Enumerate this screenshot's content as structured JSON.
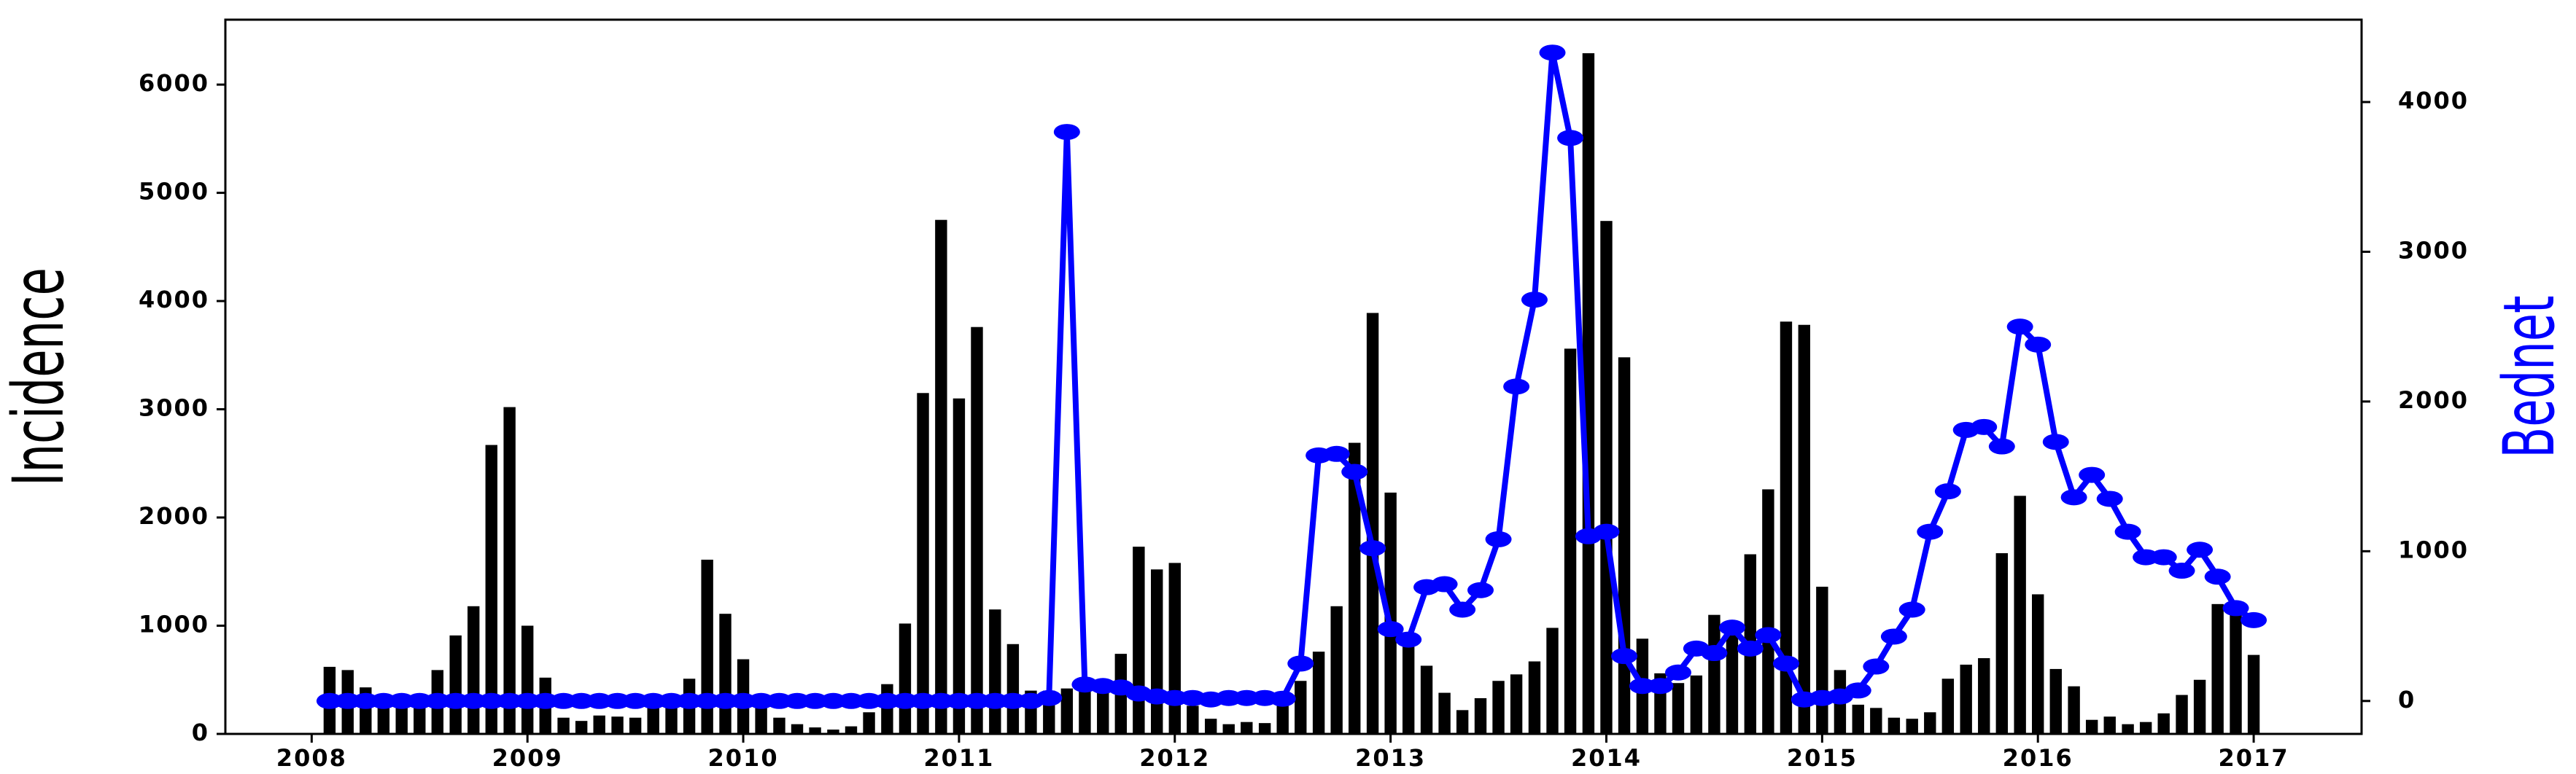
{
  "chart_data": {
    "type": "bar",
    "x": [
      2008.083,
      2008.167,
      2008.25,
      2008.333,
      2008.417,
      2008.5,
      2008.583,
      2008.667,
      2008.75,
      2008.833,
      2008.917,
      2009,
      2009.083,
      2009.167,
      2009.25,
      2009.333,
      2009.417,
      2009.5,
      2009.583,
      2009.667,
      2009.75,
      2009.833,
      2009.917,
      2010,
      2010.083,
      2010.167,
      2010.25,
      2010.333,
      2010.417,
      2010.5,
      2010.583,
      2010.667,
      2010.75,
      2010.833,
      2010.917,
      2011,
      2011.083,
      2011.167,
      2011.25,
      2011.333,
      2011.417,
      2011.5,
      2011.583,
      2011.667,
      2011.75,
      2011.833,
      2011.917,
      2012,
      2012.083,
      2012.167,
      2012.25,
      2012.333,
      2012.417,
      2012.5,
      2012.583,
      2012.667,
      2012.75,
      2012.833,
      2012.917,
      2013,
      2013.083,
      2013.167,
      2013.25,
      2013.333,
      2013.417,
      2013.5,
      2013.583,
      2013.667,
      2013.75,
      2013.833,
      2013.917,
      2014,
      2014.083,
      2014.167,
      2014.25,
      2014.333,
      2014.417,
      2014.5,
      2014.583,
      2014.667,
      2014.75,
      2014.833,
      2014.917,
      2015,
      2015.083,
      2015.167,
      2015.25,
      2015.333,
      2015.417,
      2015.5,
      2015.583,
      2015.667,
      2015.75,
      2015.833,
      2015.917,
      2016,
      2016.083,
      2016.167,
      2016.25,
      2016.333,
      2016.417,
      2016.5,
      2016.583,
      2016.667,
      2016.75,
      2016.833,
      2016.917,
      2017
    ],
    "series": [
      {
        "name": "Incidence",
        "type": "bar",
        "color": "#000000",
        "values": [
          620,
          590,
          430,
          350,
          330,
          340,
          590,
          910,
          1180,
          2670,
          3020,
          1000,
          520,
          150,
          120,
          170,
          160,
          150,
          290,
          310,
          510,
          1610,
          1110,
          690,
          290,
          150,
          90,
          60,
          40,
          70,
          200,
          460,
          1020,
          3150,
          4750,
          3100,
          3760,
          1150,
          830,
          400,
          400,
          420,
          430,
          500,
          740,
          1730,
          1520,
          1580,
          260,
          140,
          90,
          110,
          100,
          270,
          490,
          760,
          1180,
          2690,
          3890,
          2230,
          920,
          630,
          380,
          220,
          330,
          490,
          550,
          670,
          980,
          3560,
          6290,
          4740,
          3480,
          880,
          560,
          470,
          540,
          1100,
          1030,
          1660,
          2260,
          3810,
          3780,
          1360,
          590,
          270,
          240,
          150,
          140,
          200,
          510,
          640,
          700,
          1670,
          2200,
          1290,
          600,
          440,
          130,
          160,
          90,
          110,
          190,
          360,
          500,
          1200,
          1100,
          730
        ]
      },
      {
        "name": "Bednet",
        "type": "line",
        "axis": "y2",
        "color": "#0000ff",
        "values": [
          0,
          0,
          0,
          0,
          0,
          0,
          0,
          0,
          0,
          0,
          0,
          0,
          0,
          0,
          0,
          0,
          0,
          0,
          0,
          0,
          0,
          0,
          0,
          0,
          0,
          0,
          0,
          0,
          0,
          0,
          0,
          0,
          0,
          0,
          0,
          0,
          0,
          0,
          0,
          0,
          20,
          3800,
          110,
          100,
          90,
          50,
          30,
          20,
          20,
          10,
          20,
          20,
          20,
          15,
          250,
          1640,
          1650,
          1530,
          1020,
          480,
          410,
          760,
          780,
          610,
          740,
          1080,
          2100,
          2680,
          4330,
          3760,
          1100,
          1130,
          300,
          100,
          100,
          190,
          350,
          320,
          490,
          350,
          440,
          250,
          10,
          20,
          30,
          70,
          230,
          430,
          610,
          1130,
          1400,
          1810,
          1830,
          1700,
          2500,
          2380,
          1730,
          1360,
          1510,
          1350,
          1130,
          960,
          960,
          870,
          1010,
          830,
          620,
          540
        ]
      }
    ],
    "xlim": [
      2007.6,
      2017.5
    ],
    "xticks": [
      2008,
      2009,
      2010,
      2011,
      2012,
      2013,
      2014,
      2015,
      2016,
      2017
    ],
    "ylim": [
      0,
      6600
    ],
    "yticks": [
      0,
      1000,
      2000,
      3000,
      4000,
      5000,
      6000
    ],
    "y2lim": [
      -220,
      4550
    ],
    "y2ticks": [
      0,
      1000,
      2000,
      3000,
      4000
    ]
  }
}
